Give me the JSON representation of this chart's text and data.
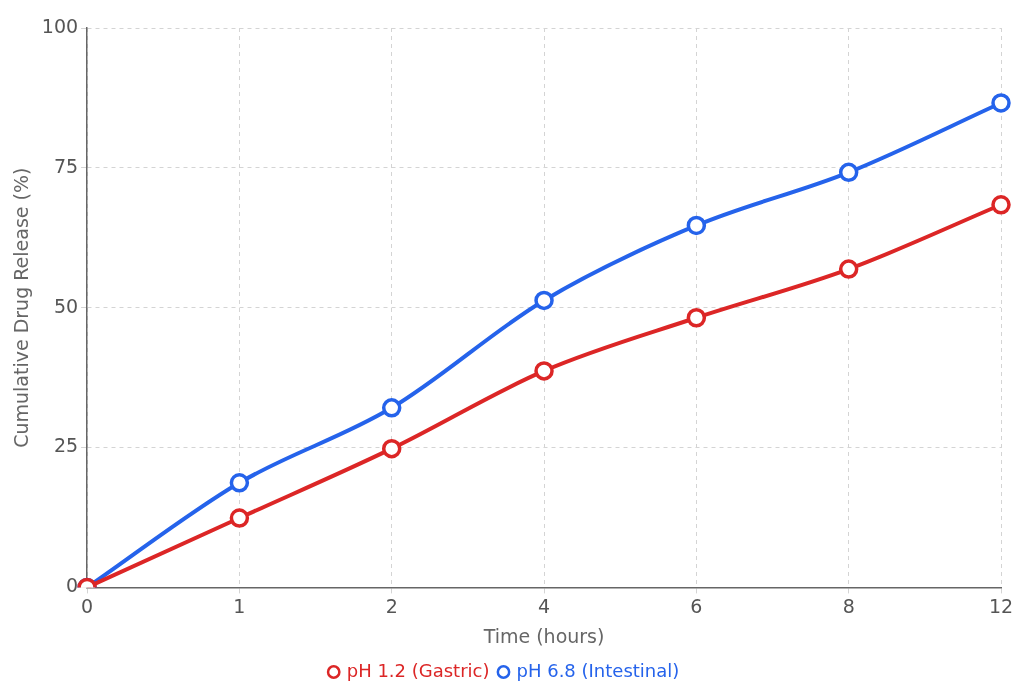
{
  "chart_data": {
    "type": "line",
    "xlabel": "Time (hours)",
    "ylabel": "Cumulative Drug Release (%)",
    "categories": [
      "0",
      "1",
      "2",
      "4",
      "6",
      "8",
      "12"
    ],
    "series": [
      {
        "name": "pH 1.2 (Gastric)",
        "color": "#dc2626",
        "values": [
          0,
          12.4,
          24.8,
          38.7,
          48.2,
          56.9,
          68.4
        ]
      },
      {
        "name": "pH 6.8 (Intestinal)",
        "color": "#2563eb",
        "values": [
          0,
          18.7,
          32.1,
          51.3,
          64.7,
          74.2,
          86.6
        ]
      }
    ],
    "ylim": [
      0,
      100
    ],
    "yticks": [
      0,
      25,
      50,
      75,
      100
    ],
    "grid": true,
    "legend": "bottom",
    "marker": "circle",
    "line_style": "solid"
  }
}
